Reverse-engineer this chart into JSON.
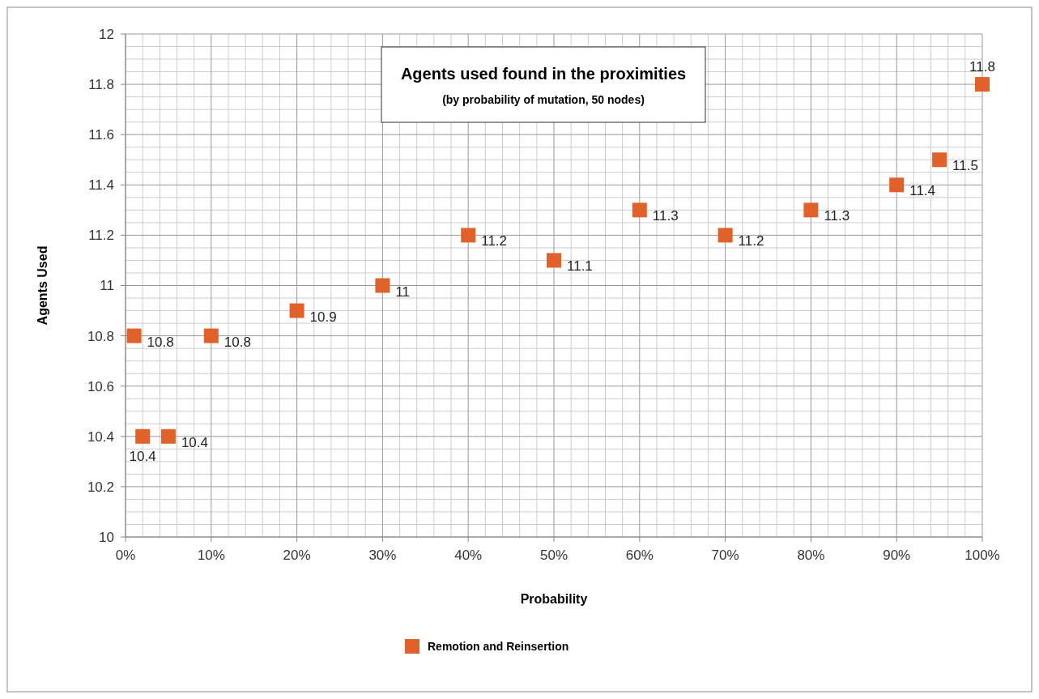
{
  "chart_data": {
    "type": "scatter",
    "title": "Agents used found in the proximities",
    "subtitle": "(by probability of mutation, 50 nodes)",
    "xlabel": "Probability",
    "ylabel": "Agents Used",
    "x": [
      1,
      2,
      5,
      10,
      20,
      30,
      40,
      50,
      60,
      70,
      80,
      90,
      95,
      100
    ],
    "series": [
      {
        "name": "Remotion and Reinsertion",
        "color": "#e0622a",
        "values": [
          10.8,
          10.4,
          10.4,
          10.8,
          10.9,
          11,
          11.2,
          11.1,
          11.3,
          11.2,
          11.3,
          11.4,
          11.5,
          11.8
        ]
      }
    ],
    "xlim": [
      0,
      100
    ],
    "xticks": [
      {
        "value": 0,
        "label": "0%"
      },
      {
        "value": 10,
        "label": "10%"
      },
      {
        "value": 20,
        "label": "20%"
      },
      {
        "value": 30,
        "label": "30%"
      },
      {
        "value": 40,
        "label": "40%"
      },
      {
        "value": 50,
        "label": "50%"
      },
      {
        "value": 60,
        "label": "60%"
      },
      {
        "value": 70,
        "label": "70%"
      },
      {
        "value": 80,
        "label": "80%"
      },
      {
        "value": 90,
        "label": "90%"
      },
      {
        "value": 100,
        "label": "100%"
      }
    ],
    "ylim": [
      10,
      12
    ],
    "yticks": [
      10,
      10.2,
      10.4,
      10.6,
      10.8,
      11,
      11.2,
      11.4,
      11.6,
      11.8,
      12
    ],
    "grid": true,
    "legend": "bottom",
    "marker": "square",
    "data_labels": true
  }
}
